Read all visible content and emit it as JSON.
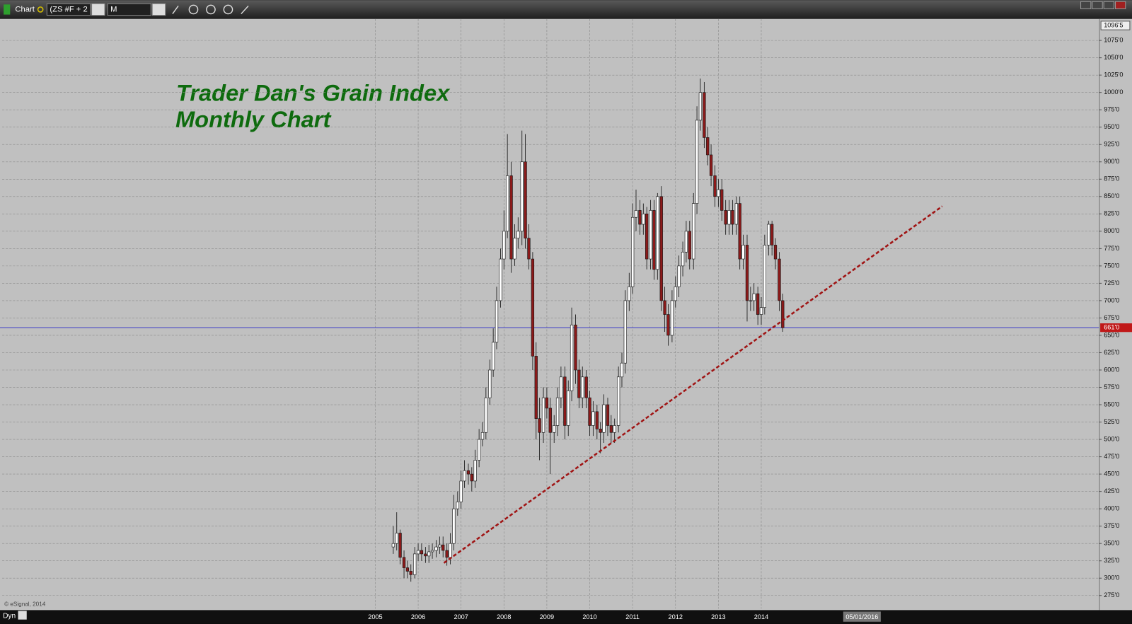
{
  "toolbar": {
    "app": "Chart",
    "symbol": "(ZS #F + 2",
    "interval": "M"
  },
  "footer": {
    "mode": "Dyn",
    "copyright": "© eSignal, 2014",
    "cursor_date": "05/01/2016"
  },
  "chart_data": {
    "type": "candlestick",
    "title": "Trader Dan's Grain Index",
    "subtitle": "Monthly Chart",
    "x": [
      2005.42,
      2005.5,
      2005.58,
      2005.67,
      2005.75,
      2005.83,
      2005.92,
      2006,
      2006.08,
      2006.17,
      2006.25,
      2006.33,
      2006.42,
      2006.5,
      2006.58,
      2006.67,
      2006.75,
      2006.83,
      2006.92,
      2007,
      2007.08,
      2007.17,
      2007.25,
      2007.33,
      2007.42,
      2007.5,
      2007.58,
      2007.67,
      2007.75,
      2007.83,
      2007.92,
      2008,
      2008.08,
      2008.17,
      2008.25,
      2008.33,
      2008.42,
      2008.5,
      2008.58,
      2008.67,
      2008.75,
      2008.83,
      2008.92,
      2009,
      2009.08,
      2009.17,
      2009.25,
      2009.33,
      2009.42,
      2009.5,
      2009.58,
      2009.67,
      2009.75,
      2009.83,
      2009.92,
      2010,
      2010.08,
      2010.17,
      2010.25,
      2010.33,
      2010.42,
      2010.5,
      2010.58,
      2010.67,
      2010.75,
      2010.83,
      2010.92,
      2011,
      2011.08,
      2011.17,
      2011.25,
      2011.33,
      2011.42,
      2011.5,
      2011.58,
      2011.67,
      2011.75,
      2011.83,
      2011.92,
      2012,
      2012.08,
      2012.17,
      2012.25,
      2012.33,
      2012.42,
      2012.5,
      2012.58,
      2012.67,
      2012.75,
      2012.83,
      2012.92,
      2013,
      2013.08,
      2013.17,
      2013.25,
      2013.33,
      2013.42,
      2013.5,
      2013.58,
      2013.67,
      2013.75,
      2013.83,
      2013.92,
      2014,
      2014.08,
      2014.17,
      2014.25,
      2014.33,
      2014.42,
      2014.5
    ],
    "open": [
      345,
      350,
      365,
      330,
      315,
      310,
      305,
      335,
      340,
      335,
      332,
      338,
      340,
      345,
      348,
      340,
      330,
      350,
      400,
      410,
      440,
      455,
      450,
      440,
      470,
      500,
      510,
      560,
      600,
      640,
      700,
      760,
      800,
      880,
      760,
      790,
      800,
      900,
      790,
      760,
      620,
      530,
      510,
      560,
      545,
      510,
      520,
      560,
      590,
      520,
      570,
      665,
      600,
      560,
      590,
      560,
      520,
      540,
      515,
      510,
      550,
      520,
      510,
      520,
      590,
      610,
      700,
      720,
      820,
      830,
      810,
      825,
      760,
      830,
      745,
      850,
      700,
      680,
      650,
      700,
      720,
      750,
      770,
      800,
      760,
      840,
      960,
      1000,
      935,
      910,
      880,
      850,
      860,
      830,
      810,
      830,
      810,
      840,
      760,
      780,
      700,
      700,
      710,
      680,
      690,
      780,
      810,
      780,
      760,
      700
    ],
    "high": [
      375,
      395,
      370,
      340,
      325,
      320,
      345,
      350,
      350,
      345,
      348,
      350,
      355,
      360,
      360,
      350,
      365,
      420,
      425,
      455,
      470,
      465,
      460,
      485,
      515,
      525,
      575,
      615,
      660,
      720,
      775,
      830,
      940,
      900,
      810,
      820,
      945,
      940,
      810,
      770,
      640,
      560,
      575,
      575,
      560,
      535,
      575,
      605,
      605,
      585,
      690,
      680,
      615,
      605,
      600,
      570,
      555,
      550,
      525,
      565,
      560,
      535,
      530,
      605,
      625,
      715,
      740,
      840,
      860,
      845,
      840,
      835,
      845,
      845,
      855,
      865,
      720,
      695,
      715,
      735,
      765,
      785,
      815,
      815,
      855,
      980,
      1020,
      1015,
      950,
      925,
      895,
      875,
      875,
      845,
      845,
      845,
      850,
      850,
      795,
      795,
      720,
      725,
      720,
      705,
      795,
      815,
      815,
      790,
      770,
      710
    ],
    "low": [
      335,
      340,
      320,
      300,
      300,
      295,
      300,
      325,
      325,
      322,
      322,
      328,
      330,
      335,
      330,
      318,
      320,
      340,
      390,
      400,
      430,
      435,
      425,
      430,
      460,
      490,
      500,
      550,
      590,
      630,
      690,
      745,
      790,
      740,
      750,
      775,
      780,
      775,
      745,
      600,
      500,
      470,
      495,
      530,
      450,
      495,
      505,
      545,
      500,
      505,
      555,
      580,
      545,
      545,
      545,
      505,
      505,
      500,
      480,
      495,
      505,
      495,
      495,
      510,
      575,
      595,
      685,
      710,
      800,
      795,
      795,
      745,
      745,
      730,
      730,
      685,
      655,
      635,
      640,
      690,
      705,
      735,
      755,
      745,
      745,
      825,
      945,
      920,
      895,
      865,
      835,
      835,
      815,
      795,
      795,
      795,
      795,
      745,
      745,
      670,
      685,
      685,
      665,
      665,
      680,
      765,
      765,
      745,
      685,
      655
    ],
    "close": [
      350,
      365,
      330,
      315,
      310,
      305,
      335,
      340,
      335,
      332,
      338,
      340,
      345,
      348,
      340,
      330,
      350,
      400,
      410,
      440,
      455,
      450,
      440,
      470,
      500,
      510,
      560,
      600,
      640,
      700,
      760,
      800,
      880,
      760,
      790,
      800,
      900,
      790,
      760,
      620,
      530,
      510,
      560,
      545,
      510,
      520,
      560,
      590,
      520,
      570,
      665,
      600,
      560,
      590,
      560,
      520,
      540,
      515,
      510,
      550,
      520,
      510,
      520,
      590,
      610,
      700,
      720,
      820,
      830,
      810,
      825,
      760,
      830,
      745,
      850,
      700,
      680,
      650,
      700,
      720,
      750,
      770,
      800,
      760,
      840,
      960,
      1000,
      935,
      910,
      880,
      850,
      860,
      830,
      810,
      830,
      810,
      840,
      760,
      780,
      700,
      700,
      710,
      680,
      690,
      780,
      810,
      780,
      760,
      700,
      661
    ],
    "up_color": "#ffffff",
    "down_color": "#8b1a1a",
    "xlim": [
      1996.3,
      2021.87
    ],
    "xticks": [
      2005,
      2006,
      2007,
      2008,
      2009,
      2010,
      2011,
      2012,
      2013,
      2014
    ],
    "ylim": [
      256,
      1106
    ],
    "yticks": [
      {
        "value": 275,
        "label": "275'0"
      },
      {
        "value": 300,
        "label": "300'0"
      },
      {
        "value": 325,
        "label": "325'0"
      },
      {
        "value": 350,
        "label": "350'0"
      },
      {
        "value": 375,
        "label": "375'0"
      },
      {
        "value": 400,
        "label": "400'0"
      },
      {
        "value": 425,
        "label": "425'0"
      },
      {
        "value": 450,
        "label": "450'0"
      },
      {
        "value": 475,
        "label": "475'0"
      },
      {
        "value": 500,
        "label": "500'0"
      },
      {
        "value": 525,
        "label": "525'0"
      },
      {
        "value": 550,
        "label": "550'0"
      },
      {
        "value": 575,
        "label": "575'0"
      },
      {
        "value": 600,
        "label": "600'0"
      },
      {
        "value": 625,
        "label": "625'0"
      },
      {
        "value": 650,
        "label": "650'0"
      },
      {
        "value": 675,
        "label": "675'0"
      },
      {
        "value": 700,
        "label": "700'0"
      },
      {
        "value": 725,
        "label": "725'0"
      },
      {
        "value": 750,
        "label": "750'0"
      },
      {
        "value": 775,
        "label": "775'0"
      },
      {
        "value": 800,
        "label": "800'0"
      },
      {
        "value": 825,
        "label": "825'0"
      },
      {
        "value": 850,
        "label": "850'0"
      },
      {
        "value": 875,
        "label": "875'0"
      },
      {
        "value": 900,
        "label": "900'0"
      },
      {
        "value": 925,
        "label": "925'0"
      },
      {
        "value": 950,
        "label": "950'0"
      },
      {
        "value": 975,
        "label": "975'0"
      },
      {
        "value": 1000,
        "label": "1000'0"
      },
      {
        "value": 1025,
        "label": "1025'0"
      },
      {
        "value": 1050,
        "label": "1050'0"
      },
      {
        "value": 1075,
        "label": "1075'0"
      }
    ],
    "y_max_label": {
      "value": 1096.5,
      "label": "1096'5"
    },
    "price_line": {
      "value": 661,
      "label": "661'0",
      "color": "#3a3ac8"
    },
    "trendline": {
      "x": [
        2006.6,
        2018.22
      ],
      "y": [
        322,
        836
      ],
      "color": "#a01414"
    },
    "grid": true
  }
}
